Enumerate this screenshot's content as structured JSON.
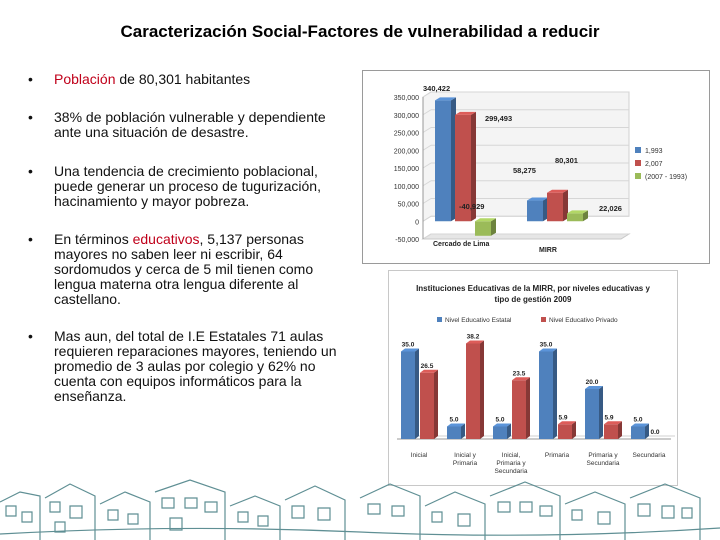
{
  "slide": {
    "title": "Caracterización Social-Factores de vulnerabilidad a reducir",
    "bullet_symbol": "•",
    "bullets": [
      {
        "highlight": "Población",
        "text": " de 80,301 habitantes"
      },
      {
        "text": "38% de población vulnerable y dependiente ante una situación de desastre."
      },
      {
        "text": "Una tendencia de crecimiento poblacional, puede generar un proceso de tugurización, hacinamiento y mayor pobreza."
      },
      {
        "pre": "En términos ",
        "highlight": "educativos",
        "post": ", 5,137 personas mayores no saben leer ni escribir, 64 sordomudos y cerca de 5 mil tienen como lengua materna otra lengua diferente al castellano."
      },
      {
        "text": "Mas aun, del total de I.E Estatales 71 aulas requieren reparaciones mayores, teniendo un promedio de 3 aulas por colegio y 62% no cuenta con equipos informáticos para la enseñanza."
      }
    ]
  },
  "colors": {
    "blue": "#4f81bd",
    "red": "#c0504d",
    "green": "#9bbb59",
    "highlight_red": "#c0001a"
  },
  "chart_data": [
    {
      "type": "bar",
      "title": "",
      "categories": [
        "Cercado de Lima",
        "MIRR"
      ],
      "series": [
        {
          "name": "1,993",
          "values": [
            340422,
            58275
          ]
        },
        {
          "name": "2,007",
          "values": [
            299493,
            80301
          ]
        },
        {
          "name": "(2007 - 1993)",
          "values": [
            -40929,
            22026
          ]
        }
      ],
      "data_labels": [
        "340,422",
        "299,493",
        "-40,929",
        "58,275",
        "80,301",
        "22,026"
      ],
      "ylim": [
        -50000,
        350000
      ],
      "yticks": [
        "350,000",
        "300,000",
        "250,000",
        "200,000",
        "150,000",
        "100,000",
        "50,000",
        "0",
        "-50,000"
      ],
      "legend_position": "right"
    },
    {
      "type": "bar",
      "title": "Instituciones Educativas de la MIRR, por niveles educativas y tipo de gestión 2009",
      "categories": [
        "Inicial",
        "Inicial y Primaria",
        "Inicial, Primaria y Secundaria",
        "Primaria",
        "Primaria y Secundaria",
        "Secundaria"
      ],
      "category_lines": [
        [
          "Inicial"
        ],
        [
          "Inicial y",
          "Primaria"
        ],
        [
          "Inicial,",
          "Primaria y",
          "Secundaria"
        ],
        [
          "Primaria"
        ],
        [
          "Primaria y",
          "Secundaria"
        ],
        [
          "Secundaria"
        ]
      ],
      "series": [
        {
          "name": "Nivel Educativo Estatal",
          "values": [
            35.0,
            5.0,
            5.0,
            35.0,
            20.0,
            5.0
          ]
        },
        {
          "name": "Nivel Educativo Privado",
          "values": [
            26.5,
            38.2,
            23.5,
            5.9,
            5.9,
            0.0
          ]
        }
      ],
      "data_labels": [
        "35.0",
        "26.5",
        "5.0",
        "38.2",
        "5.0",
        "23.5",
        "35.0",
        "5.9",
        "20.0",
        "5.9",
        "5.0",
        "0.0"
      ],
      "ylim": [
        0,
        40
      ],
      "legend_position": "top"
    }
  ]
}
